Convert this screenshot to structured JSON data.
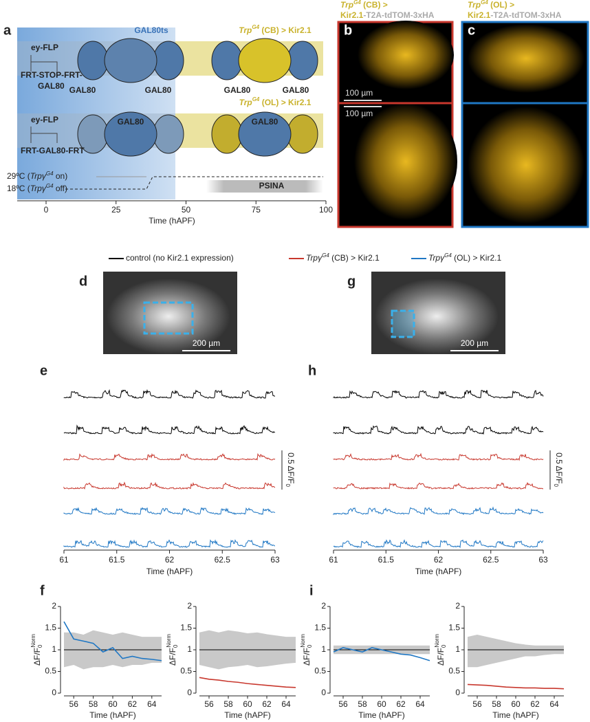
{
  "panel_a": {
    "letter": "a",
    "gal80ts": "GAL80ts",
    "cb_title": [
      "Trp",
      "G4",
      " (CB) > Kir2.1"
    ],
    "ol_title": [
      "Trp",
      "G4",
      " (OL) > Kir2.1"
    ],
    "row1": {
      "flp": "ey-FLP",
      "construct": [
        "FRT-STOP-FRT-",
        "GAL80"
      ],
      "labels": [
        "GAL80",
        "GAL80",
        "GAL80",
        "GAL80"
      ]
    },
    "row2": {
      "flp": "ey-FLP",
      "construct": "FRT-GAL80-FRT",
      "labels": [
        "GAL80",
        "GAL80"
      ]
    },
    "temp_high": [
      "29ºC (",
      "Trpγ",
      "G4",
      " on)"
    ],
    "temp_low": [
      "18ºC (",
      "Trpγ",
      "G4",
      " off)"
    ],
    "psina": "PSINA",
    "xticks": [
      0,
      25,
      50,
      75,
      100
    ],
    "xlabel": "Time (hAPF)"
  },
  "panel_b": {
    "letter": "b",
    "title": [
      "Trp",
      "G4",
      " (CB) >"
    ],
    "subtitle": [
      "Kir2.1",
      "-T2A-tdTOM-3xHA"
    ],
    "scale": [
      "100 µm",
      "100 µm"
    ]
  },
  "panel_c": {
    "letter": "c",
    "title": [
      "Trp",
      "G4",
      " (OL) >"
    ],
    "subtitle": [
      "Kir2.1",
      "-T2A-tdTOM-3xHA"
    ]
  },
  "legend": {
    "control": "control (no Kir2.1 expression)",
    "cb": [
      "Trpγ",
      "G4",
      " (CB) > Kir2.1"
    ],
    "ol": [
      "Trpγ",
      "G4",
      " (OL) > Kir2.1"
    ]
  },
  "panel_d": {
    "letter": "d",
    "scale": "200 µm"
  },
  "panel_g": {
    "letter": "g",
    "scale": "200 µm"
  },
  "panel_e": {
    "letter": "e",
    "xticks": [
      61,
      61.5,
      62,
      62.5,
      63
    ],
    "xlabel": "Time (hAPF)",
    "scale": [
      "0.5 ΔF/F",
      "0"
    ]
  },
  "panel_h": {
    "letter": "h",
    "xticks": [
      61,
      61.5,
      62,
      62.5,
      63
    ],
    "xlabel": "Time (hAPF)",
    "scale": [
      "0.5 ΔF/F",
      "0"
    ]
  },
  "chart_data": [
    {
      "type": "line",
      "letter": "f",
      "ylabel": [
        "ΔF/F",
        "0",
        "Norm"
      ],
      "xlabel": "Time (hAPF)",
      "x": [
        55,
        56,
        57,
        58,
        59,
        60,
        61,
        62,
        63,
        64,
        65
      ],
      "xlim": [
        55,
        65
      ],
      "ylim": [
        0,
        2
      ],
      "xticks": [
        56,
        58,
        60,
        62,
        64
      ],
      "yticks": [
        0,
        0.5,
        1,
        1.5,
        2
      ],
      "series": [
        {
          "color": "#1f77c4",
          "values": [
            1.65,
            1.25,
            1.2,
            1.15,
            0.95,
            1.05,
            0.8,
            0.85,
            0.8,
            0.78,
            0.75
          ]
        }
      ],
      "band_lower": [
        0.6,
        0.65,
        0.55,
        0.6,
        0.6,
        0.65,
        0.6,
        0.65,
        0.65,
        0.7,
        0.7
      ],
      "band_upper": [
        1.4,
        1.4,
        1.35,
        1.45,
        1.4,
        1.35,
        1.4,
        1.35,
        1.3,
        1.3,
        1.3
      ]
    },
    {
      "type": "line",
      "ylabel": [
        "ΔF/F",
        "0",
        "Norm"
      ],
      "xlabel": "Time (hAPF)",
      "x": [
        55,
        56,
        57,
        58,
        59,
        60,
        61,
        62,
        63,
        64,
        65
      ],
      "xlim": [
        55,
        65
      ],
      "ylim": [
        0,
        2
      ],
      "xticks": [
        56,
        58,
        60,
        62,
        64
      ],
      "yticks": [
        0,
        0.5,
        1,
        1.5,
        2
      ],
      "series": [
        {
          "color": "#c8372d",
          "values": [
            0.36,
            0.32,
            0.3,
            0.27,
            0.25,
            0.22,
            0.2,
            0.18,
            0.16,
            0.14,
            0.13
          ]
        }
      ],
      "band_lower": [
        0.65,
        0.6,
        0.55,
        0.6,
        0.62,
        0.65,
        0.6,
        0.62,
        0.65,
        0.68,
        0.7
      ],
      "band_upper": [
        1.4,
        1.45,
        1.4,
        1.45,
        1.42,
        1.38,
        1.4,
        1.36,
        1.33,
        1.3,
        1.3
      ]
    },
    {
      "type": "line",
      "letter": "i",
      "ylabel": [
        "ΔF/F",
        "0",
        "Norm"
      ],
      "xlabel": "Time (hAPF)",
      "x": [
        55,
        56,
        57,
        58,
        59,
        60,
        61,
        62,
        63,
        64,
        65
      ],
      "xlim": [
        55,
        65
      ],
      "ylim": [
        0,
        2
      ],
      "xticks": [
        56,
        58,
        60,
        62,
        64
      ],
      "yticks": [
        0,
        0.5,
        1,
        1.5,
        2
      ],
      "series": [
        {
          "color": "#1f77c4",
          "values": [
            0.95,
            1.05,
            1.0,
            0.95,
            1.05,
            1.0,
            0.95,
            0.9,
            0.88,
            0.82,
            0.75
          ]
        }
      ],
      "band_lower": [
        0.9,
        0.9,
        0.9,
        0.9,
        0.9,
        0.9,
        0.9,
        0.9,
        0.9,
        0.9,
        0.9
      ],
      "band_upper": [
        1.1,
        1.1,
        1.1,
        1.1,
        1.1,
        1.1,
        1.1,
        1.1,
        1.1,
        1.1,
        1.1
      ]
    },
    {
      "type": "line",
      "ylabel": [
        "ΔF/F",
        "0",
        "Norm"
      ],
      "xlabel": "Time (hAPF)",
      "x": [
        55,
        56,
        57,
        58,
        59,
        60,
        61,
        62,
        63,
        64,
        65
      ],
      "xlim": [
        55,
        65
      ],
      "ylim": [
        0,
        2
      ],
      "xticks": [
        56,
        58,
        60,
        62,
        64
      ],
      "yticks": [
        0,
        0.5,
        1,
        1.5,
        2
      ],
      "series": [
        {
          "color": "#c8372d",
          "values": [
            0.2,
            0.19,
            0.18,
            0.16,
            0.14,
            0.13,
            0.12,
            0.12,
            0.11,
            0.11,
            0.1
          ]
        }
      ],
      "band_lower": [
        0.6,
        0.6,
        0.65,
        0.7,
        0.75,
        0.8,
        0.85,
        0.85,
        0.88,
        0.9,
        0.9
      ],
      "band_upper": [
        1.3,
        1.35,
        1.3,
        1.25,
        1.2,
        1.15,
        1.12,
        1.1,
        1.1,
        1.1,
        1.1
      ]
    }
  ]
}
